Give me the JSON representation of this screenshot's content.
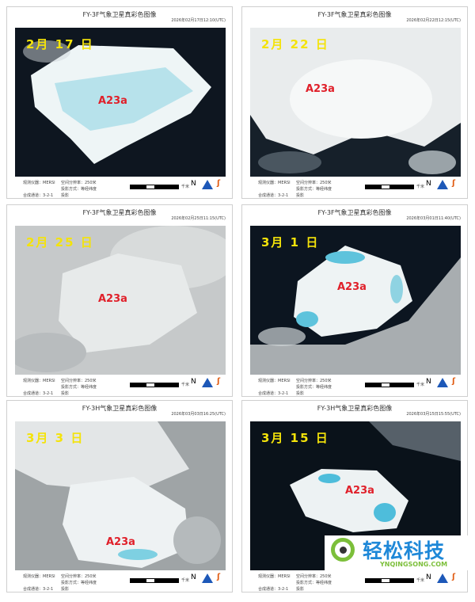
{
  "panels": [
    {
      "title": "FY-3F气象卫星真彩色图像",
      "timestamp": "2026年02月17日12:10(UTC)",
      "date_label": "2月 17 日",
      "iceberg_label": "A23a"
    },
    {
      "title": "FY-3F气象卫星真彩色图像",
      "timestamp": "2026年02月22日12:15(UTC)",
      "date_label": "2月 22 日",
      "iceberg_label": "A23a"
    },
    {
      "title": "FY-3F气象卫星真彩色图像",
      "timestamp": "2026年02月25日11:15(UTC)",
      "date_label": "2月 25 日",
      "iceberg_label": "A23a"
    },
    {
      "title": "FY-3F气象卫星真彩色图像",
      "timestamp": "2026年03月01日11:40(UTC)",
      "date_label": "3月 1 日",
      "iceberg_label": "A23a"
    },
    {
      "title": "FY-3H气象卫星真彩色图像",
      "timestamp": "2026年03月03日16:25(UTC)",
      "date_label": "3月 3 日",
      "iceberg_label": "A23a"
    },
    {
      "title": "FY-3H气象卫星真彩色图像",
      "timestamp": "2026年03月15日15:55(UTC)",
      "date_label": "3月 15 日",
      "iceberg_label": "A23a"
    }
  ],
  "footer": {
    "instrument": "观测仪器：MERSI",
    "resolution": "空间分辨率：250米",
    "channels": "合成通道：3-2-1",
    "projection": "投影方式：等经纬度投影",
    "scale_unit": "千米",
    "north": "N",
    "logo_right": "NSMC"
  },
  "watermark": {
    "name": "轻松科技",
    "url": "YNQINGSONG.COM"
  },
  "colors": {
    "date_label": "#f4e30a",
    "iceberg_label": "#e0202a",
    "watermark_blue": "#1e88d8",
    "watermark_green": "#7cbf3a"
  }
}
